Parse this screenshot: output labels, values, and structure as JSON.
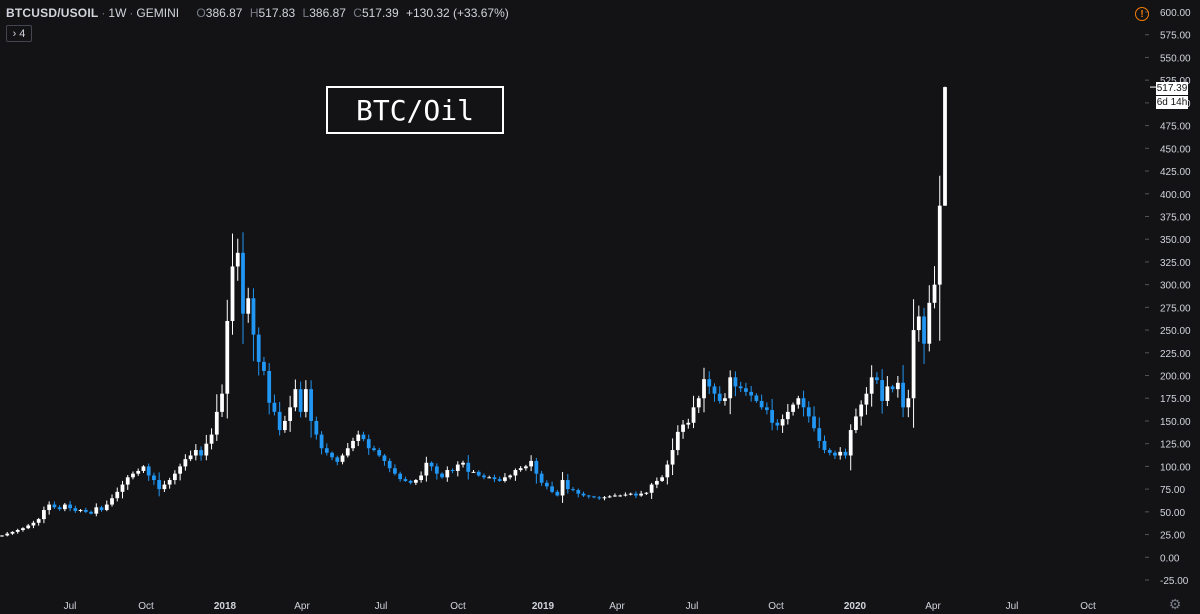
{
  "header": {
    "symbol": "BTCUSD/USOIL",
    "interval": "1W",
    "exchange": "GEMINI",
    "open_label": "O",
    "open": "386.87",
    "high_label": "H",
    "high": "517.83",
    "low_label": "L",
    "low": "386.87",
    "close_label": "C",
    "close": "517.39",
    "change": "+130.32 (+33.67%)"
  },
  "indicator_toggle": {
    "chevron": "›",
    "count": "4"
  },
  "warning_icon": "exclamation-icon",
  "annotation": "BTC/Oil",
  "price_badge": "517.39",
  "countdown_badge": "6d 14h",
  "settings_icon": "gear-icon",
  "colors": {
    "background": "#131316",
    "up_candle": "#ffffff",
    "down_candle": "#2196f3",
    "axis_text": "#d1d4dc",
    "warning": "#f57c00"
  },
  "chart_data": {
    "type": "candlestick",
    "title": "BTC/Oil",
    "symbol": "BTCUSD/USOIL",
    "interval": "1W",
    "ylim": [
      -25,
      600
    ],
    "y_ticks": [
      "600.00",
      "575.00",
      "550.00",
      "525.00",
      "500.00",
      "475.00",
      "450.00",
      "425.00",
      "400.00",
      "375.00",
      "350.00",
      "325.00",
      "300.00",
      "275.00",
      "250.00",
      "225.00",
      "200.00",
      "175.00",
      "150.00",
      "125.00",
      "100.00",
      "75.00",
      "50.00",
      "25.00",
      "0.00",
      "-25.00"
    ],
    "x_ticks": [
      {
        "label": "Jul",
        "bold": false
      },
      {
        "label": "Oct",
        "bold": false
      },
      {
        "label": "2018",
        "bold": true
      },
      {
        "label": "Apr",
        "bold": false
      },
      {
        "label": "Jul",
        "bold": false
      },
      {
        "label": "Oct",
        "bold": false
      },
      {
        "label": "2019",
        "bold": true
      },
      {
        "label": "Apr",
        "bold": false
      },
      {
        "label": "Jul",
        "bold": false
      },
      {
        "label": "Oct",
        "bold": false
      },
      {
        "label": "2020",
        "bold": true
      },
      {
        "label": "Apr",
        "bold": false
      },
      {
        "label": "Jul",
        "bold": false
      },
      {
        "label": "Oct",
        "bold": false
      }
    ],
    "closes": [
      24,
      26,
      28,
      30,
      32,
      35,
      38,
      42,
      52,
      58,
      55,
      53,
      58,
      54,
      51,
      52,
      50,
      48,
      55,
      52,
      58,
      65,
      72,
      80,
      88,
      92,
      95,
      100,
      90,
      85,
      75,
      80,
      85,
      92,
      100,
      108,
      112,
      118,
      112,
      125,
      135,
      160,
      180,
      260,
      320,
      335,
      268,
      285,
      245,
      215,
      205,
      170,
      160,
      140,
      150,
      165,
      185,
      160,
      185,
      150,
      135,
      120,
      115,
      110,
      105,
      112,
      120,
      128,
      135,
      130,
      120,
      118,
      112,
      106,
      98,
      92,
      86,
      84,
      82,
      85,
      90,
      104,
      100,
      92,
      88,
      96,
      95,
      102,
      104,
      94,
      94,
      90,
      88,
      88,
      86,
      84,
      88,
      90,
      96,
      98,
      100,
      106,
      92,
      82,
      78,
      72,
      68,
      85,
      75,
      74,
      70,
      68,
      67,
      66,
      65,
      66,
      67,
      68,
      68,
      69,
      70,
      68,
      70,
      71,
      80,
      84,
      88,
      102,
      118,
      138,
      146,
      148,
      165,
      175,
      196,
      188,
      180,
      172,
      175,
      198,
      188,
      186,
      182,
      178,
      172,
      165,
      162,
      148,
      145,
      152,
      160,
      168,
      175,
      165,
      155,
      142,
      128,
      118,
      115,
      112,
      116,
      112,
      140,
      155,
      168,
      180,
      198,
      195,
      172,
      188,
      185,
      192,
      165,
      175,
      250,
      265,
      235,
      280,
      300,
      386.87,
      517.39
    ],
    "last_candle": {
      "open": 386.87,
      "high": 517.83,
      "low": 386.87,
      "close": 517.39,
      "change": "+130.32",
      "change_pct": "+33.67%"
    }
  }
}
